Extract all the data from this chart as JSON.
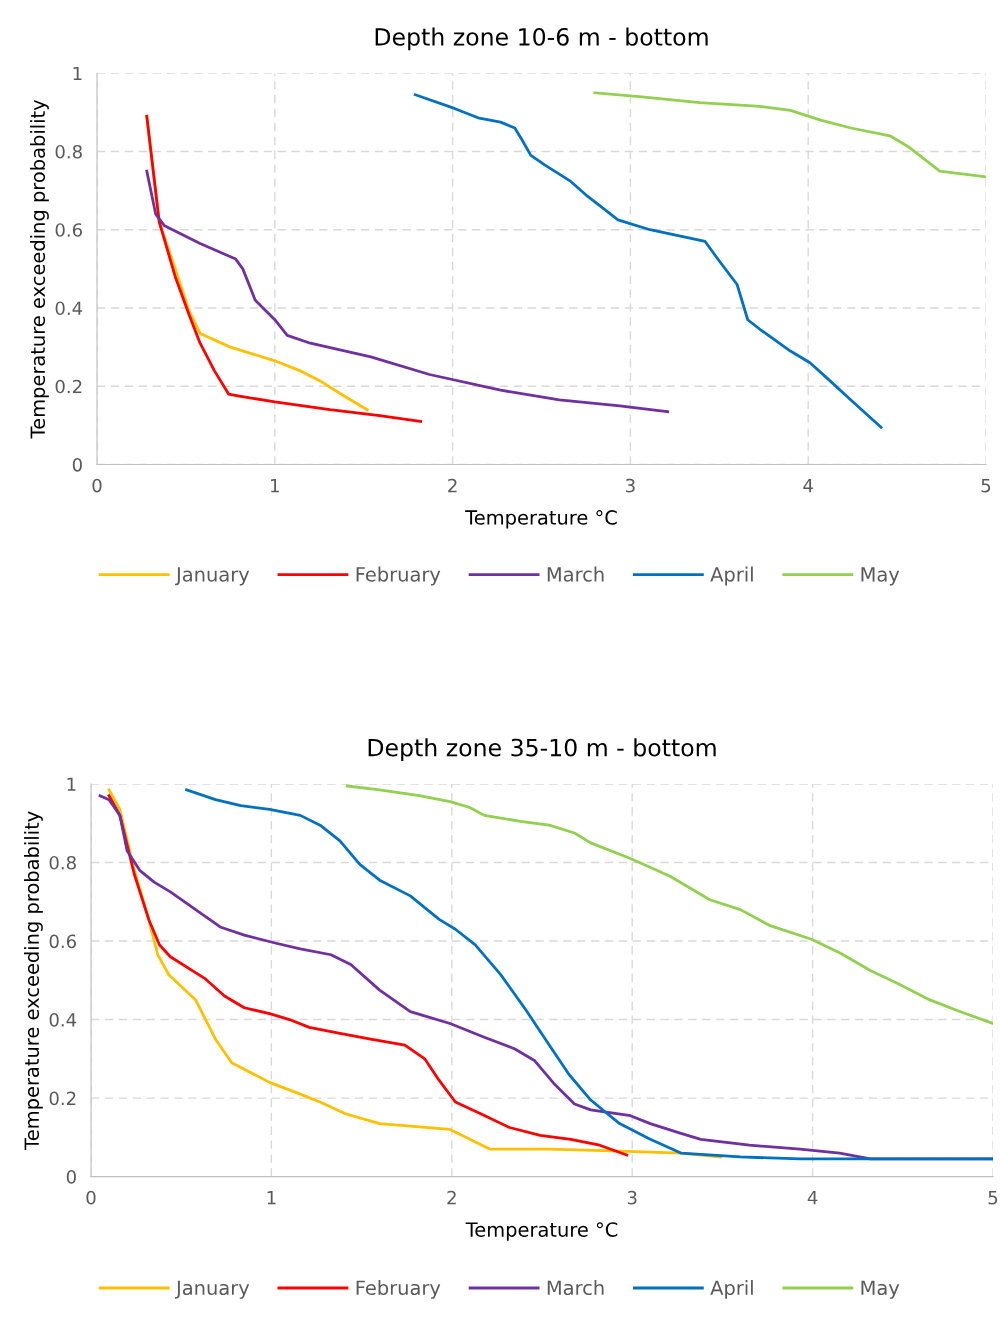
{
  "chart_data": [
    {
      "type": "line",
      "title": "Depth zone 10-6 m - bottom",
      "xlabel": "Temperature °C",
      "ylabel": "Temperature exceeding probability",
      "xlim": [
        0,
        5
      ],
      "xticks": [
        0,
        1,
        2,
        3,
        4,
        5
      ],
      "ylim": [
        0,
        1
      ],
      "yticks": [
        0,
        0.2,
        0.4,
        0.6,
        0.8,
        1
      ],
      "grid": true,
      "legend": "bottom",
      "marker": "none",
      "line_style": "solid",
      "series": [
        {
          "name": "January",
          "color": "#ffc000",
          "x": [
            0.28,
            0.35,
            0.44,
            0.52,
            0.58,
            0.75,
            1.0,
            1.14,
            1.25,
            1.39,
            1.52
          ],
          "values": [
            0.89,
            0.62,
            0.5,
            0.39,
            0.335,
            0.3,
            0.265,
            0.24,
            0.215,
            0.175,
            0.14
          ]
        },
        {
          "name": "February",
          "color": "#ff0000",
          "x": [
            0.28,
            0.35,
            0.44,
            0.52,
            0.58,
            0.66,
            0.74,
            0.8,
            1.0,
            1.31,
            1.59,
            1.82
          ],
          "values": [
            0.89,
            0.62,
            0.48,
            0.38,
            0.31,
            0.24,
            0.18,
            0.175,
            0.16,
            0.14,
            0.125,
            0.11
          ]
        },
        {
          "name": "March",
          "color": "#7030a0",
          "x": [
            0.28,
            0.33,
            0.38,
            0.58,
            0.78,
            0.82,
            0.89,
            1.0,
            1.07,
            1.2,
            1.54,
            1.87,
            2.27,
            2.6,
            2.94,
            3.21
          ],
          "values": [
            0.75,
            0.64,
            0.61,
            0.565,
            0.525,
            0.5,
            0.42,
            0.37,
            0.33,
            0.31,
            0.275,
            0.23,
            0.19,
            0.165,
            0.15,
            0.135
          ]
        },
        {
          "name": "April",
          "color": "#0070c0",
          "x": [
            1.79,
            2.01,
            2.15,
            2.27,
            2.35,
            2.39,
            2.44,
            2.52,
            2.66,
            2.76,
            2.86,
            2.93,
            3.11,
            3.42,
            3.5,
            3.6,
            3.66,
            3.73,
            3.9,
            4.01,
            4.12,
            4.24,
            4.41
          ],
          "values": [
            0.945,
            0.91,
            0.885,
            0.875,
            0.86,
            0.83,
            0.79,
            0.765,
            0.725,
            0.685,
            0.65,
            0.625,
            0.6,
            0.57,
            0.52,
            0.46,
            0.37,
            0.345,
            0.29,
            0.26,
            0.215,
            0.165,
            0.095
          ]
        },
        {
          "name": "May",
          "color": "#92d050",
          "x": [
            2.8,
            3.05,
            3.39,
            3.73,
            3.9,
            4.07,
            4.24,
            4.46,
            4.57,
            4.74,
            5.0
          ],
          "values": [
            0.95,
            0.94,
            0.925,
            0.915,
            0.905,
            0.88,
            0.86,
            0.84,
            0.81,
            0.75,
            0.735
          ]
        }
      ]
    },
    {
      "type": "line",
      "title": "Depth zone 35-10 m - bottom",
      "xlabel": "Temperature °C",
      "ylabel": "Temperature exceeding probability",
      "xlim": [
        0,
        5
      ],
      "xticks": [
        0,
        1,
        2,
        3,
        4,
        5
      ],
      "ylim": [
        0,
        1
      ],
      "yticks": [
        0,
        0.2,
        0.4,
        0.6,
        0.8,
        1
      ],
      "grid": true,
      "legend": "bottom",
      "marker": "none",
      "line_style": "solid",
      "series": [
        {
          "name": "January",
          "color": "#ffc000",
          "x": [
            0.1,
            0.16,
            0.24,
            0.32,
            0.37,
            0.43,
            0.58,
            0.69,
            0.78,
            0.99,
            1.16,
            1.27,
            1.41,
            1.6,
            1.99,
            2.1,
            2.21,
            2.54,
            2.93,
            3.27,
            3.49
          ],
          "values": [
            0.985,
            0.935,
            0.78,
            0.655,
            0.565,
            0.515,
            0.45,
            0.35,
            0.29,
            0.24,
            0.21,
            0.19,
            0.16,
            0.135,
            0.12,
            0.095,
            0.07,
            0.07,
            0.065,
            0.06,
            0.05
          ]
        },
        {
          "name": "February",
          "color": "#ff0000",
          "x": [
            0.1,
            0.16,
            0.24,
            0.32,
            0.38,
            0.44,
            0.63,
            0.74,
            0.85,
            0.99,
            1.1,
            1.21,
            1.38,
            1.55,
            1.74,
            1.85,
            1.93,
            2.02,
            2.16,
            2.32,
            2.49,
            2.66,
            2.82,
            2.97
          ],
          "values": [
            0.97,
            0.92,
            0.77,
            0.655,
            0.59,
            0.56,
            0.505,
            0.46,
            0.43,
            0.415,
            0.4,
            0.38,
            0.365,
            0.35,
            0.335,
            0.3,
            0.245,
            0.19,
            0.16,
            0.125,
            0.105,
            0.095,
            0.08,
            0.055
          ]
        },
        {
          "name": "March",
          "color": "#7030a0",
          "x": [
            0.05,
            0.1,
            0.16,
            0.2,
            0.27,
            0.35,
            0.44,
            0.58,
            0.72,
            0.85,
            1.02,
            1.16,
            1.33,
            1.44,
            1.6,
            1.77,
            1.99,
            2.18,
            2.35,
            2.46,
            2.57,
            2.68,
            2.77,
            2.99,
            3.1,
            3.27,
            3.38,
            3.65,
            3.93,
            4.15,
            4.32,
            5.0
          ],
          "values": [
            0.97,
            0.96,
            0.92,
            0.83,
            0.78,
            0.75,
            0.725,
            0.68,
            0.635,
            0.615,
            0.595,
            0.58,
            0.565,
            0.54,
            0.475,
            0.42,
            0.39,
            0.355,
            0.325,
            0.295,
            0.235,
            0.185,
            0.17,
            0.155,
            0.135,
            0.11,
            0.095,
            0.08,
            0.07,
            0.06,
            0.045,
            0.045
          ]
        },
        {
          "name": "April",
          "color": "#0070c0",
          "x": [
            0.53,
            0.69,
            0.83,
            0.99,
            1.16,
            1.27,
            1.38,
            1.49,
            1.6,
            1.77,
            1.93,
            2.02,
            2.13,
            2.27,
            2.41,
            2.54,
            2.65,
            2.77,
            2.93,
            3.1,
            3.27,
            3.6,
            3.93,
            5.0
          ],
          "values": [
            0.985,
            0.96,
            0.945,
            0.935,
            0.92,
            0.895,
            0.855,
            0.795,
            0.755,
            0.715,
            0.655,
            0.63,
            0.59,
            0.515,
            0.425,
            0.335,
            0.26,
            0.195,
            0.135,
            0.095,
            0.06,
            0.05,
            0.045,
            0.045
          ]
        },
        {
          "name": "May",
          "color": "#92d050",
          "x": [
            1.42,
            1.6,
            1.82,
            1.99,
            2.1,
            2.18,
            2.38,
            2.54,
            2.68,
            2.77,
            2.99,
            3.21,
            3.43,
            3.6,
            3.76,
            3.99,
            4.15,
            4.32,
            4.48,
            4.65,
            4.82,
            5.0
          ],
          "values": [
            0.995,
            0.985,
            0.97,
            0.955,
            0.94,
            0.92,
            0.905,
            0.895,
            0.875,
            0.85,
            0.81,
            0.765,
            0.705,
            0.68,
            0.64,
            0.605,
            0.57,
            0.525,
            0.49,
            0.45,
            0.42,
            0.39
          ]
        }
      ]
    }
  ]
}
